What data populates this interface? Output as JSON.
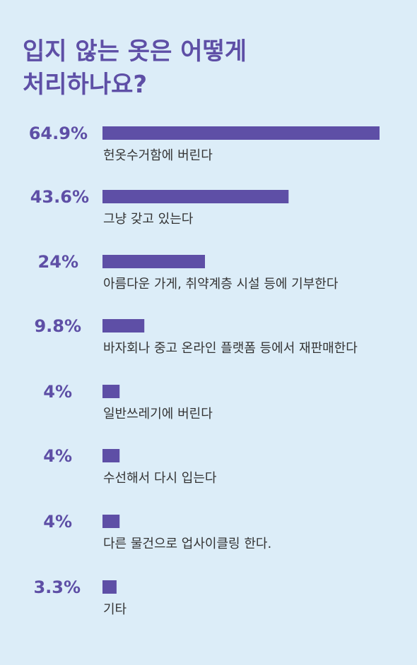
{
  "title_lines": [
    "입지 않는 옷은 어떻게",
    "처리하나요?"
  ],
  "colors": {
    "background": "#dcedf8",
    "accent": "#5e4fa6",
    "text": "#333333"
  },
  "chart_data": {
    "type": "bar",
    "orientation": "horizontal",
    "grid": false,
    "categories": [
      "헌옷수거함에 버린다",
      "그냥 갖고 있는다",
      "아름다운 가게, 취약계층 시설 등에 기부한다",
      "바자회나 중고 온라인 플랫폼 등에서 재판매한다",
      "일반쓰레기에 버린다",
      "수선해서 다시 입는다",
      "다른 물건으로 업사이클링 한다.",
      "기타"
    ],
    "values": [
      64.9,
      43.6,
      24,
      9.8,
      4,
      4,
      4,
      3.3
    ],
    "value_labels": [
      "64.9%",
      "43.6%",
      "24%",
      "9.8%",
      "4%",
      "4%",
      "4%",
      "3.3%"
    ],
    "xlim": [
      0,
      64.9
    ]
  }
}
